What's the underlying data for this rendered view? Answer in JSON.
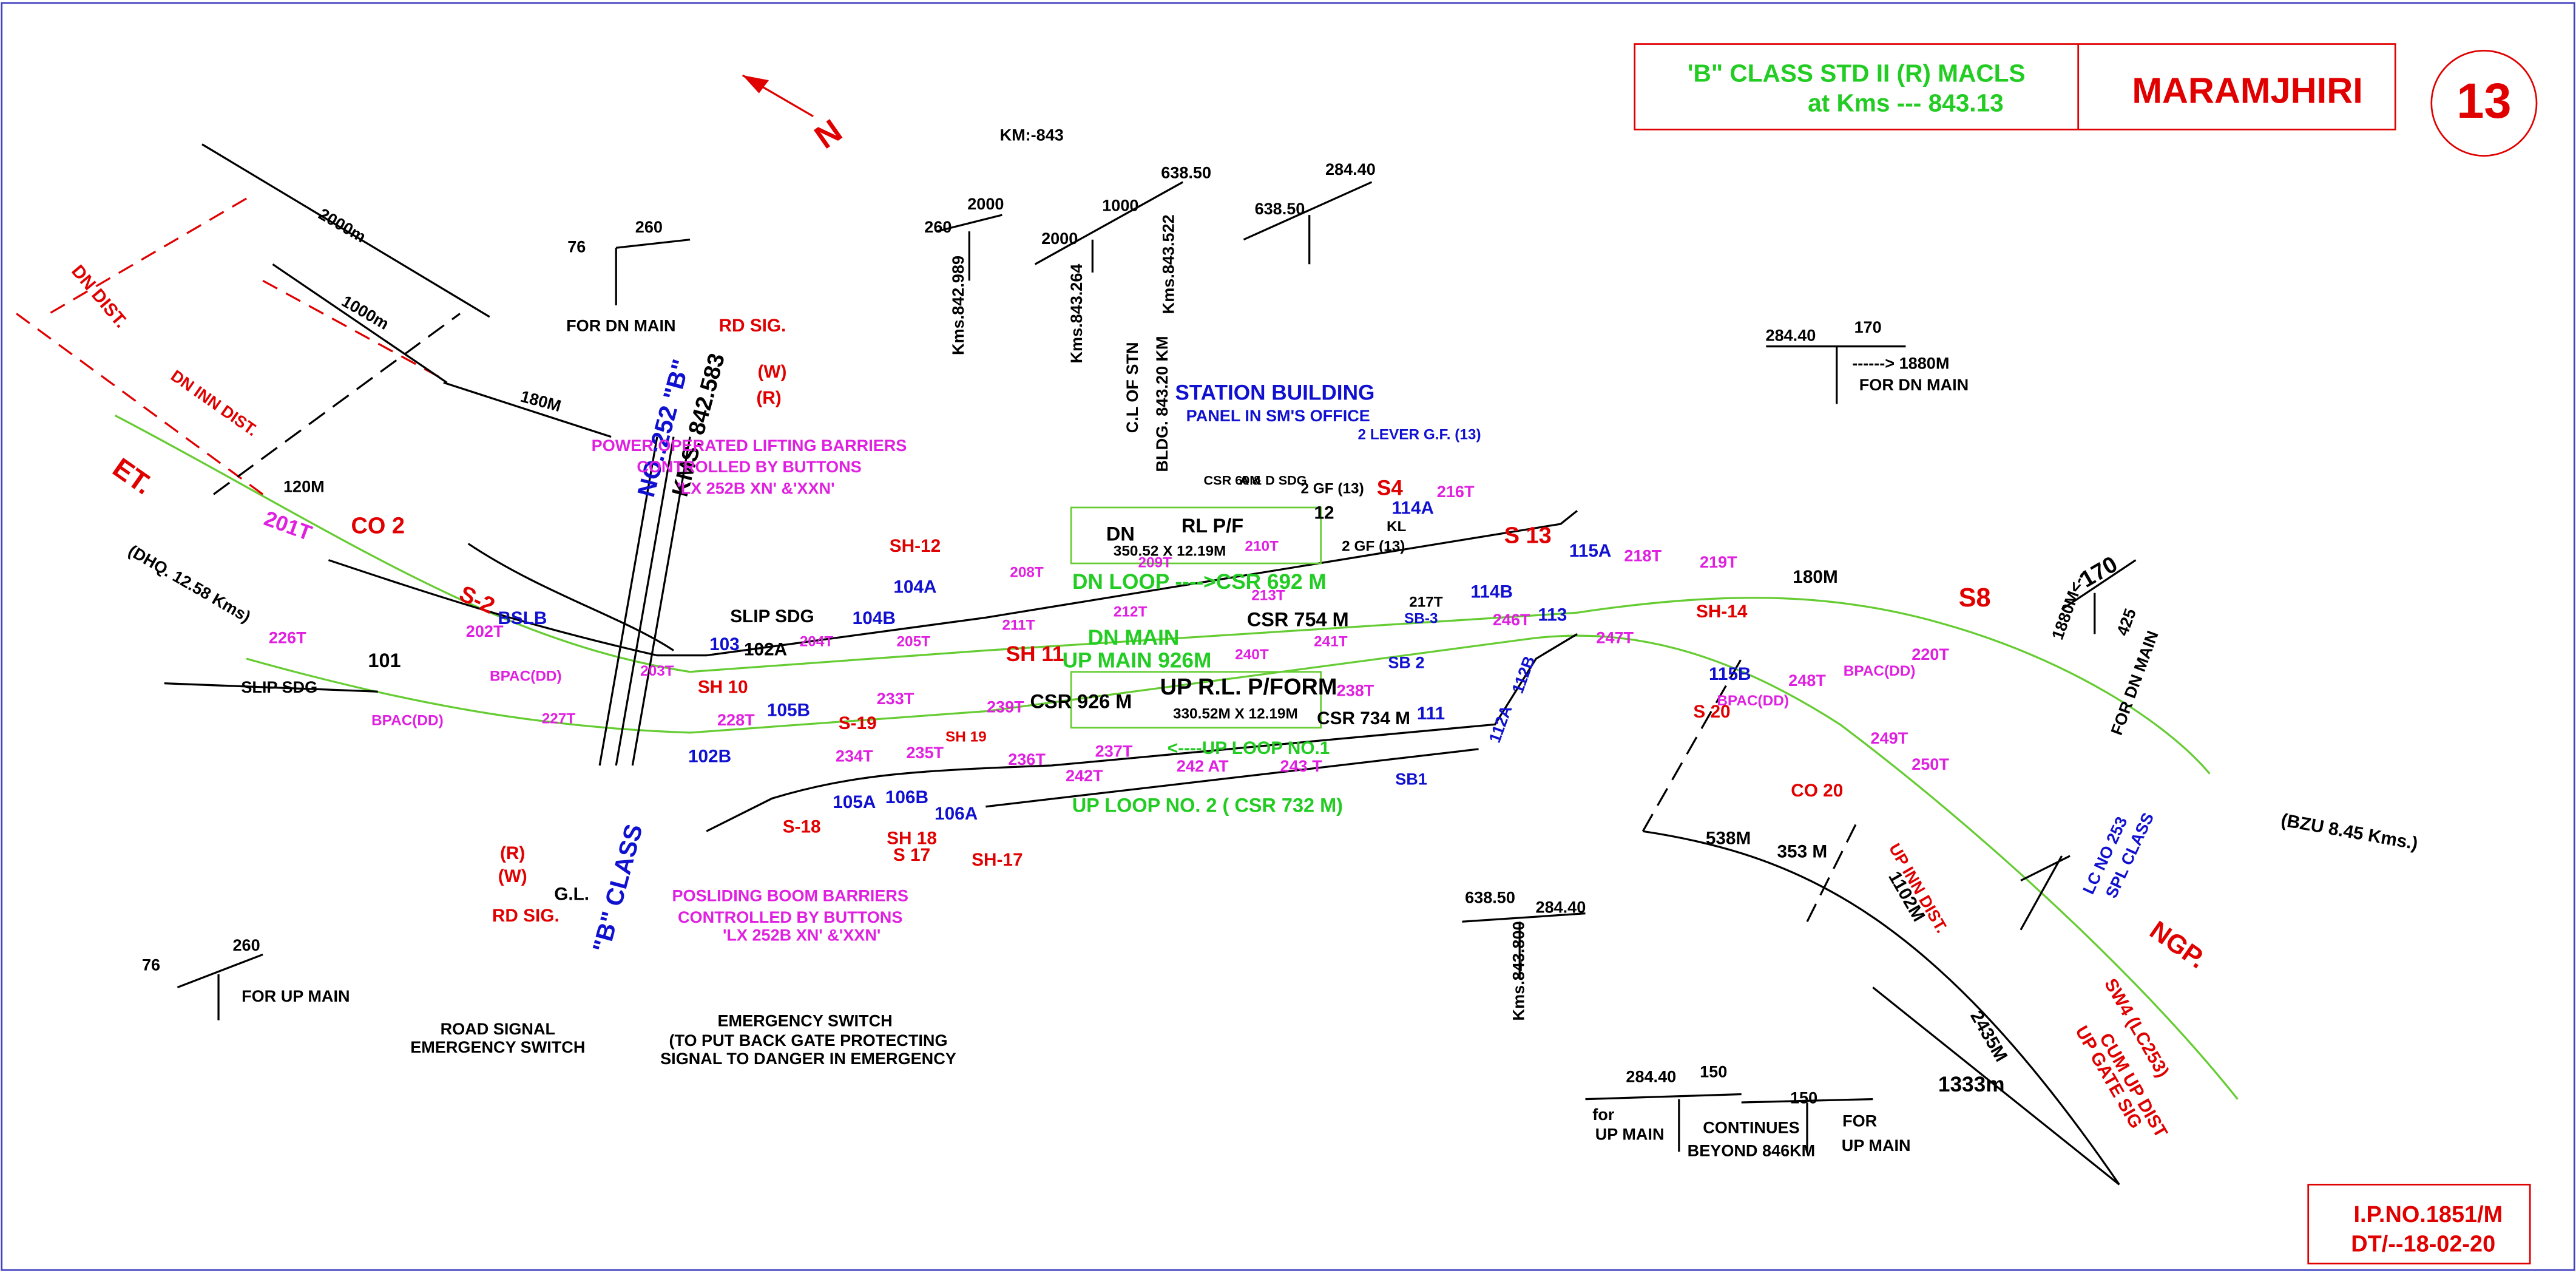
{
  "header": {
    "title_line1": "'B\" CLASS STD II (R) MACLS",
    "title_line2": "at Kms --- 843.13",
    "station": "MARAMJHIRI",
    "number": "13"
  },
  "footer": {
    "ip_no": "I.P.NO.1851/M",
    "date": "DT/--18-02-20"
  },
  "north": "N",
  "labels": [
    "KM:-843",
    "260",
    "2000",
    "Kms.842.989",
    "2000",
    "1000",
    "638.50",
    "Kms.843.264",
    "Kms.843.522",
    "638.50",
    "284.40",
    "C.L OF STN",
    "BLDG. 843.20 KM",
    "76",
    "260",
    "FOR DN MAIN",
    "2000m",
    "1000m",
    "180M",
    "120M",
    "DN DIST.",
    "DN INN DIST.",
    "RD SIG.",
    "(W)",
    "(R)",
    "NO.:252 \"B\"",
    "KMS. 842.583",
    "POWER OPERATED LIFTING BARRIERS",
    "CONTROLLED BY BUTTONS",
    "'LX 252B XN' &'XXN'",
    "ET.",
    "201T",
    "CO 2",
    "S-2",
    "202T",
    "226T",
    "BSLB",
    "(DHQ. 12.58 Kms)",
    "101",
    "SLIP SDG",
    "BPAC(DD)",
    "BPAC(DD)",
    "227T",
    "203T",
    "SLIP SDG",
    "103",
    "102A",
    "204T",
    "205T",
    "104B",
    "104A",
    "SH-12",
    "208T",
    "211T",
    "212T",
    "213T",
    "DN MAIN",
    "CSR 754 M",
    "241T",
    "240T",
    "UP MAIN 926M",
    "SH 11",
    "SH 10",
    "228T",
    "105B",
    "102B",
    "233T",
    "239T",
    "CSR 926 M",
    "S-19",
    "SH 19",
    "234T",
    "235T",
    "236T",
    "237T",
    "<----UP LOOP NO.1",
    "242T",
    "242 AT",
    "243 T",
    "UP LOOP NO. 2 ( CSR 732 M)",
    "105A",
    "106B",
    "106A",
    "S-18",
    "SH 18",
    "S 17",
    "SH-17",
    "UP R.L. P/FORM",
    "330.52M  X  12.19M",
    "CSR 734 M",
    "238T",
    "SB 2",
    "111",
    "112A",
    "112B",
    "SB1",
    "DN",
    "RL P/F",
    "350.52 X 12.19M",
    "209T",
    "210T",
    "DN LOOP ---->CSR 692 M",
    "12",
    "CSR 60M",
    "A & D SDG",
    "2 GF (13)",
    "S4",
    "KL",
    "114A",
    "216T",
    "S 13",
    "217T",
    "2 GF (13)",
    "SB-3",
    "114B",
    "246T",
    "113",
    "115A",
    "218T",
    "219T",
    "SH-14",
    "247T",
    "115B",
    "BPAC(DD)",
    "248T",
    "180M",
    "S8",
    "220T",
    "BPAC(DD)",
    "S 20",
    "249T",
    "250T",
    "CO 20",
    "UP INN DIST.",
    "538M",
    "353 M",
    "1102M",
    "2435M",
    "1333m",
    "LC NO 253",
    "SPL CLASS",
    "(BZU 8.45 Kms.)",
    "NGP.",
    "SW4 (LC253)",
    "UP GATE SIG",
    "CUM UP DIST",
    "STATION BUILDING",
    "PANEL IN SM'S OFFICE",
    "2 LEVER G.F. (13)",
    "284.40",
    "170",
    "------> 1880M",
    "FOR DN MAIN",
    "170",
    "1880M<--",
    "425",
    "FOR DN MAIN",
    "638.50",
    "284.40",
    "Kms.843.800",
    "284.40",
    "150",
    "for",
    "UP MAIN",
    "CONTINUES",
    "BEYOND 846KM",
    "150",
    "FOR",
    "UP MAIN",
    "76",
    "260",
    "FOR UP MAIN",
    "ROAD SIGNAL",
    "EMERGENCY SWITCH",
    "EMERGENCY SWITCH",
    "(TO PUT BACK GATE PROTECTING",
    "SIGNAL TO DANGER IN EMERGENCY",
    "POSLIDING BOOM  BARRIERS",
    "CONTROLLED BY BUTTONS",
    "'LX 252B XN' &'XXN'",
    "(R)",
    "(W)",
    "RD SIG.",
    "G.L.",
    "\"B\" CLASS"
  ]
}
